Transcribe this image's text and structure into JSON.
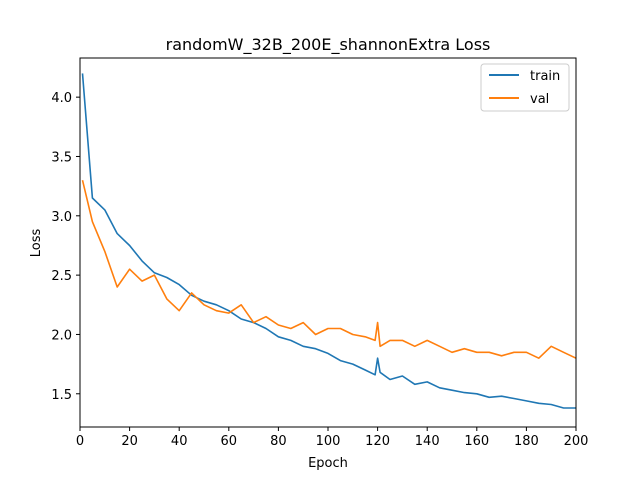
{
  "chart_data": {
    "type": "line",
    "title": "randomW_32B_200E_shannonExtra Loss",
    "xlabel": "Epoch",
    "ylabel": "Loss",
    "xlim": [
      0,
      200
    ],
    "ylim": [
      1.22,
      4.33
    ],
    "xticks": [
      0,
      20,
      40,
      60,
      80,
      100,
      120,
      140,
      160,
      180,
      200
    ],
    "yticks": [
      1.5,
      2.0,
      2.5,
      3.0,
      3.5,
      4.0
    ],
    "ytick_labels": [
      "1.5",
      "2.0",
      "2.5",
      "3.0",
      "3.5",
      "4.0"
    ],
    "grid": false,
    "legend_position": "top-right",
    "x": [
      1,
      5,
      10,
      15,
      20,
      25,
      30,
      35,
      40,
      45,
      50,
      55,
      60,
      65,
      70,
      75,
      80,
      85,
      90,
      95,
      100,
      105,
      110,
      115,
      119,
      120,
      121,
      125,
      130,
      135,
      140,
      145,
      150,
      155,
      160,
      165,
      170,
      175,
      180,
      185,
      190,
      195,
      200
    ],
    "series": [
      {
        "name": "train",
        "color": "#1f77b4",
        "values": [
          4.2,
          3.15,
          3.05,
          2.85,
          2.75,
          2.62,
          2.52,
          2.48,
          2.42,
          2.33,
          2.28,
          2.25,
          2.2,
          2.13,
          2.1,
          2.05,
          1.98,
          1.95,
          1.9,
          1.88,
          1.84,
          1.78,
          1.75,
          1.7,
          1.66,
          1.8,
          1.68,
          1.62,
          1.65,
          1.58,
          1.6,
          1.55,
          1.53,
          1.51,
          1.5,
          1.47,
          1.48,
          1.46,
          1.44,
          1.42,
          1.41,
          1.38,
          1.38
        ]
      },
      {
        "name": "val",
        "color": "#ff7f0e",
        "values": [
          3.3,
          2.95,
          2.7,
          2.4,
          2.55,
          2.45,
          2.5,
          2.3,
          2.2,
          2.35,
          2.25,
          2.2,
          2.18,
          2.25,
          2.1,
          2.15,
          2.08,
          2.05,
          2.1,
          2.0,
          2.05,
          2.05,
          2.0,
          1.98,
          1.95,
          2.1,
          1.9,
          1.95,
          1.95,
          1.9,
          1.95,
          1.9,
          1.85,
          1.88,
          1.85,
          1.85,
          1.82,
          1.85,
          1.85,
          1.8,
          1.9,
          1.85,
          1.8
        ]
      }
    ]
  }
}
